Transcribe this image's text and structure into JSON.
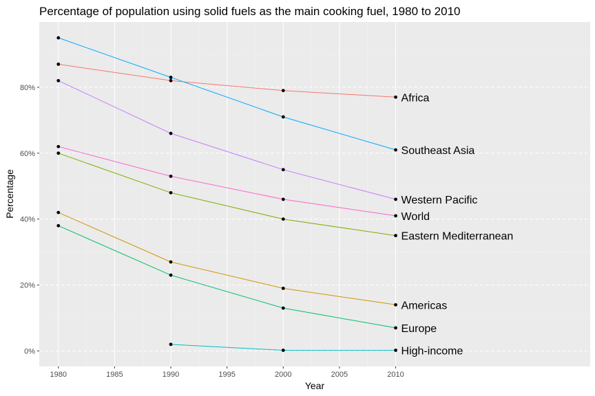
{
  "chart_data": {
    "type": "line",
    "title": "Percentage of population using solid fuels as the main cooking fuel, 1980 to 2010",
    "xlabel": "Year",
    "ylabel": "Percentage",
    "x_ticks": [
      "1980",
      "1985",
      "1990",
      "1995",
      "2000",
      "2005",
      "2010"
    ],
    "y_ticks": [
      "0%",
      "20%",
      "40%",
      "60%",
      "80%"
    ],
    "xlim": [
      1978.3,
      2027.3
    ],
    "ylim": [
      -4.7,
      99.8
    ],
    "x": [
      1980,
      1990,
      2000,
      2010
    ],
    "grid": true,
    "legend": "direct labels at line ends",
    "series": [
      {
        "name": "Africa",
        "color": "#F8766D",
        "values": [
          87,
          82,
          79,
          77
        ]
      },
      {
        "name": "Southeast Asia",
        "color": "#00A9FF",
        "values": [
          95,
          83,
          71,
          61
        ]
      },
      {
        "name": "Western Pacific",
        "color": "#C77CFF",
        "values": [
          82,
          66,
          55,
          46
        ]
      },
      {
        "name": "World",
        "color": "#FF61CC",
        "values": [
          62,
          53,
          46,
          41
        ]
      },
      {
        "name": "Eastern  Mediterranean",
        "color": "#7CAE00",
        "values": [
          60,
          48,
          40,
          35
        ]
      },
      {
        "name": "Americas",
        "color": "#CD9600",
        "values": [
          42,
          27,
          19,
          14
        ]
      },
      {
        "name": "Europe",
        "color": "#00BE67",
        "values": [
          38,
          23,
          13,
          7
        ]
      },
      {
        "name": "High-income",
        "color": "#00BFC4",
        "values": [
          null,
          2,
          0.2,
          0.2
        ]
      }
    ]
  }
}
